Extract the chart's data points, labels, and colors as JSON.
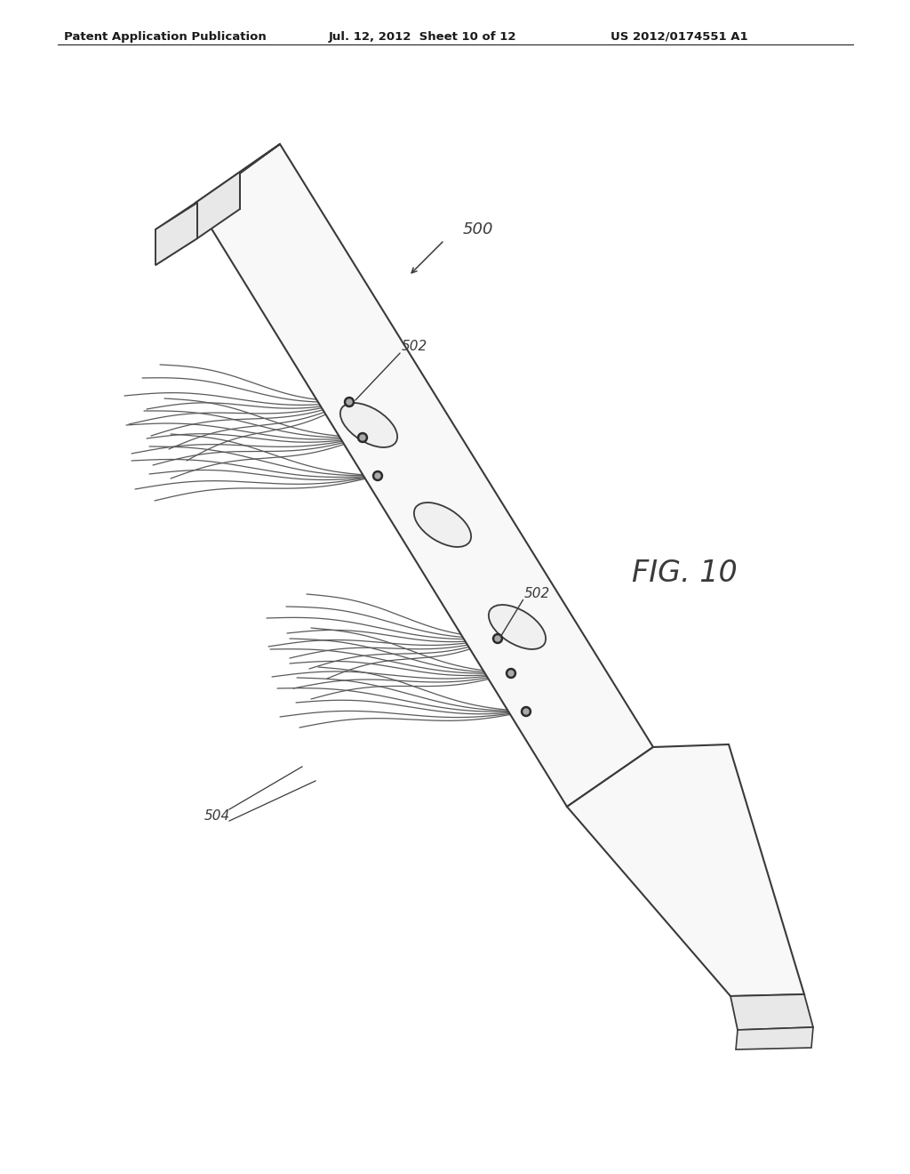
{
  "bg_color": "#ffffff",
  "header_left": "Patent Application Publication",
  "header_mid": "Jul. 12, 2012  Sheet 10 of 12",
  "header_right": "US 2012/0174551 A1",
  "fig_label": "FIG. 10",
  "label_500": "500",
  "label_502_upper": "502",
  "label_502_lower": "502",
  "label_504": "504",
  "line_color": "#3a3a3a",
  "line_color_filament": "#5a5a5a",
  "fill_blade_top": "#f8f8f8",
  "fill_blade_side": "#e8e8e8",
  "fill_hole": "#f0f0f0",
  "screw_outer": "#2a2a2a",
  "screw_inner": "#aaaaaa"
}
